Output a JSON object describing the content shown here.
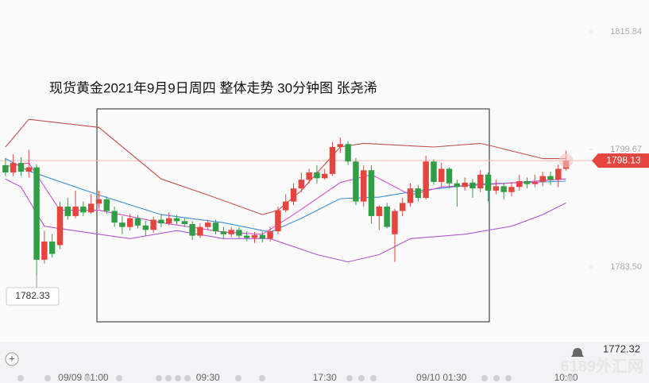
{
  "chart_data": {
    "type": "candlestick",
    "title": "现货黄金2021年9月9日周四 整体走势  30分钟图  张尧浠",
    "categories": [
      null,
      null,
      null,
      null,
      null,
      null,
      null,
      null,
      null,
      null,
      "09/09 01:00",
      null,
      null,
      null,
      null,
      null,
      null,
      null,
      null,
      null,
      null,
      null,
      null,
      null,
      null,
      null,
      "09:30",
      null,
      null,
      null,
      null,
      null,
      null,
      null,
      null,
      null,
      null,
      null,
      null,
      null,
      null,
      "17:30",
      null,
      null,
      null,
      null,
      null,
      null,
      null,
      null,
      null,
      null,
      null,
      null,
      null,
      null,
      "09/10 01:30",
      null,
      null,
      null,
      null,
      null,
      null,
      null,
      null,
      null,
      null,
      null,
      null,
      null,
      null,
      null,
      "10:00"
    ],
    "open": [
      1797.5,
      1796.5,
      1797.8,
      1796.6,
      1797.2,
      1784.5,
      1787.0,
      1786.5,
      1791.8,
      1790.5,
      1791.8,
      1791.0,
      1792.2,
      1792.8,
      1791.2,
      1789.6,
      1789.0,
      1790.2,
      1789.2,
      1788.6,
      1790.0,
      1789.5,
      1790.2,
      1789.8,
      1789.4,
      1787.8,
      1789.0,
      1789.6,
      1788.4,
      1788.0,
      1788.6,
      1787.8,
      1787.5,
      1787.9,
      1787.4,
      1788.4,
      1791.3,
      1792.5,
      1794.3,
      1795.5,
      1796.5,
      1795.7,
      1796.3,
      1800.0,
      1800.4,
      1798.0,
      1792.5,
      1796.8,
      1790.5,
      1791.8,
      1788.0,
      1791.2,
      1792.3,
      1794.3,
      1793.0,
      1798.0,
      1795.2,
      1797.0,
      1795.0,
      1794.5,
      1795.1,
      1794.3,
      1796.2,
      1794.0,
      1794.6,
      1793.8,
      1794.5,
      1795.3,
      1794.9,
      1795.2,
      1796.0,
      1795.5,
      1797.0
    ],
    "high": [
      1798.5,
      1799.0,
      1798.6,
      1799.6,
      1797.6,
      1788.5,
      1788.0,
      1792.5,
      1793.0,
      1794.0,
      1792.5,
      1793.5,
      1794.0,
      1793.2,
      1791.8,
      1790.5,
      1790.8,
      1790.6,
      1789.8,
      1790.4,
      1790.8,
      1791.0,
      1790.6,
      1790.2,
      1789.8,
      1789.5,
      1790.0,
      1790.0,
      1789.0,
      1789.0,
      1789.0,
      1788.4,
      1788.3,
      1788.4,
      1789.0,
      1791.8,
      1793.5,
      1795.0,
      1796.5,
      1797.0,
      1797.5,
      1797.0,
      1800.7,
      1801.3,
      1800.8,
      1798.5,
      1797.5,
      1797.5,
      1792.0,
      1792.3,
      1791.5,
      1793.0,
      1795.0,
      1794.8,
      1798.8,
      1798.3,
      1797.8,
      1797.2,
      1795.5,
      1795.8,
      1795.6,
      1796.8,
      1796.5,
      1795.5,
      1795.0,
      1795.2,
      1796.2,
      1795.8,
      1796.2,
      1796.6,
      1796.6,
      1797.6,
      1799.5
    ],
    "low": [
      1796.0,
      1796.0,
      1796.0,
      1795.8,
      1782.33,
      1784.0,
      1784.8,
      1786.0,
      1790.0,
      1790.2,
      1790.5,
      1790.8,
      1791.5,
      1790.8,
      1789.0,
      1788.0,
      1788.5,
      1788.8,
      1787.8,
      1788.2,
      1789.0,
      1789.2,
      1789.3,
      1789.0,
      1787.2,
      1787.5,
      1788.6,
      1788.0,
      1787.4,
      1787.6,
      1787.4,
      1787.0,
      1786.8,
      1786.9,
      1787.0,
      1788.0,
      1791.0,
      1792.0,
      1793.8,
      1795.0,
      1795.0,
      1795.5,
      1796.0,
      1799.2,
      1797.5,
      1792.0,
      1791.8,
      1789.5,
      1788.6,
      1788.8,
      1784.2,
      1790.5,
      1791.8,
      1792.5,
      1792.8,
      1794.8,
      1794.5,
      1794.3,
      1791.8,
      1794.0,
      1793.0,
      1793.8,
      1792.5,
      1793.5,
      1792.8,
      1793.2,
      1794.0,
      1794.3,
      1794.5,
      1794.6,
      1794.8,
      1794.5,
      1796.8
    ],
    "close": [
      1796.5,
      1797.8,
      1796.6,
      1797.2,
      1784.5,
      1787.0,
      1785.3,
      1791.8,
      1790.5,
      1791.8,
      1791.0,
      1792.2,
      1792.8,
      1791.2,
      1789.6,
      1789.0,
      1790.2,
      1789.2,
      1788.6,
      1790.0,
      1789.5,
      1790.2,
      1789.8,
      1789.4,
      1787.8,
      1789.0,
      1789.6,
      1788.4,
      1788.0,
      1788.6,
      1787.8,
      1787.5,
      1787.9,
      1787.4,
      1788.4,
      1791.3,
      1792.5,
      1794.3,
      1795.5,
      1796.5,
      1795.7,
      1796.3,
      1800.0,
      1800.4,
      1798.0,
      1792.5,
      1796.8,
      1790.5,
      1791.8,
      1789.0,
      1791.2,
      1792.3,
      1794.3,
      1793.0,
      1798.0,
      1795.2,
      1797.0,
      1795.0,
      1794.5,
      1795.1,
      1794.3,
      1796.2,
      1794.0,
      1794.6,
      1793.8,
      1794.5,
      1795.3,
      1794.9,
      1795.2,
      1796.0,
      1795.5,
      1797.0,
      1798.13
    ],
    "up_color": "#e5453f",
    "down_color": "#2f9e44",
    "overlays": [
      {
        "color": "#c0504d",
        "x": [
          0,
          3,
          12,
          20,
          26,
          33,
          35,
          38,
          43,
          46,
          55,
          61,
          63,
          69,
          72
        ],
        "values": [
          1800.0,
          1803.8,
          1802.7,
          1795.6,
          1793.4,
          1790.7,
          1791.3,
          1794.0,
          1800.0,
          1800.5,
          1800.0,
          1800.5,
          1800.0,
          1798.4,
          1798.4
        ]
      },
      {
        "color": "#b455d6",
        "x": [
          0,
          2,
          5,
          12,
          16,
          22,
          28,
          34,
          40,
          44,
          48,
          52,
          59,
          65,
          69,
          72
        ],
        "values": [
          1795.6,
          1794.5,
          1789.1,
          1788.0,
          1787.4,
          1788.5,
          1787.4,
          1787.4,
          1785.2,
          1784.2,
          1785.2,
          1787.4,
          1788.0,
          1789.1,
          1790.7,
          1792.3
        ]
      },
      {
        "color": "#3b8fd9",
        "x": [
          0,
          3,
          12,
          20,
          28,
          34,
          38,
          43,
          48,
          53,
          61,
          72
        ],
        "values": [
          1798.4,
          1796.7,
          1793.4,
          1790.7,
          1789.6,
          1788.3,
          1790.2,
          1792.9,
          1793.1,
          1794.0,
          1794.9,
          1795.3
        ]
      },
      {
        "color": "#d94fd1",
        "x": [
          0,
          3,
          7,
          12,
          20,
          28,
          33,
          37,
          43,
          47,
          52,
          56,
          63,
          72
        ],
        "values": [
          1797.3,
          1797.8,
          1791.3,
          1791.3,
          1789.6,
          1788.3,
          1788.0,
          1790.7,
          1795.1,
          1796.2,
          1793.4,
          1794.5,
          1794.9,
          1795.6
        ]
      }
    ],
    "ylim": [
      1769.95,
      1820.21
    ],
    "yticks": [
      1815.84,
      1799.67,
      {
        "value": 1783.5,
        "label": "1783.50"
      }
    ],
    "bottom_label": "1772.32",
    "watermark": "6189外汇网"
  }
}
